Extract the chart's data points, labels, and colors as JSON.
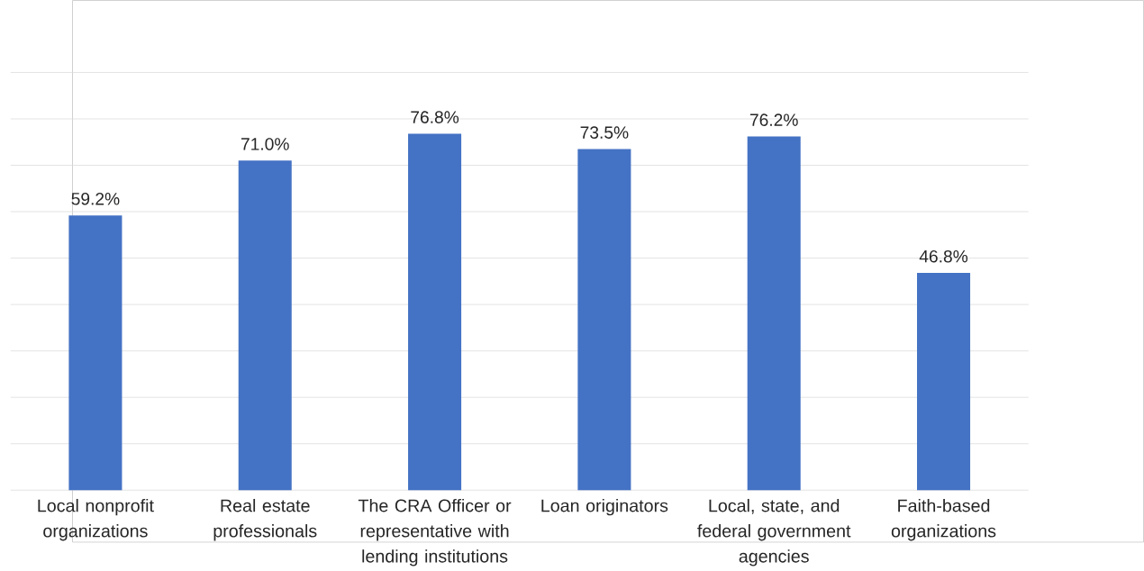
{
  "chart_data": {
    "type": "bar",
    "categories": [
      "Local nonprofit organizations",
      "Real estate professionals",
      "The CRA Officer or representative with lending institutions",
      "Loan originators",
      "Local, state, and federal government agencies",
      "Faith-based organizations"
    ],
    "values": [
      59.2,
      71.0,
      76.8,
      73.5,
      76.2,
      46.8
    ],
    "value_labels": [
      "59.2%",
      "71.0%",
      "76.8%",
      "73.5%",
      "76.2%",
      "46.8%"
    ],
    "color": "#4472c4",
    "ylim": [
      0,
      90
    ],
    "yticks": [
      {
        "value": 0,
        "label": null
      },
      {
        "value": 10,
        "label": null
      },
      {
        "value": 20,
        "label": null
      },
      {
        "value": 30,
        "label": null
      },
      {
        "value": 40,
        "label": null
      },
      {
        "value": 50,
        "label": null
      },
      {
        "value": 60,
        "label": null
      },
      {
        "value": 70,
        "label": null
      },
      {
        "value": 80,
        "label": null
      },
      {
        "value": 90,
        "label": null
      }
    ],
    "tick_labels": "x",
    "grid": "y"
  }
}
